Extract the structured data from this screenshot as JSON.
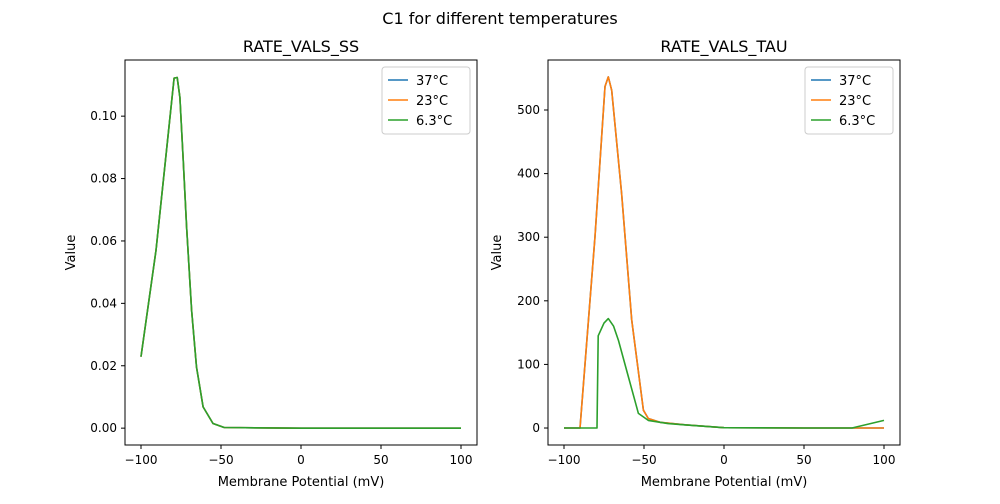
{
  "chart_data": {
    "title": "C1 for different temperatures",
    "subplots": [
      {
        "type": "line",
        "title": "RATE_VALS_SS",
        "xlabel": "Membrane Potential (mV)",
        "ylabel": "Value",
        "xlim": [
          -110,
          110
        ],
        "ylim": [
          -0.0054,
          0.118
        ],
        "xticks": [
          -100,
          -50,
          0,
          50,
          100
        ],
        "xtick_labels": [
          "−100",
          "−50",
          "0",
          "50",
          "100"
        ],
        "yticks": [
          0,
          0.02,
          0.04,
          0.06,
          0.08,
          0.1
        ],
        "ytick_labels": [
          "0.00",
          "0.02",
          "0.04",
          "0.06",
          "0.08",
          "0.10"
        ],
        "legend": "top-right",
        "series": [
          {
            "name": "37°C",
            "color": "#1f77b4",
            "x": [
              -100,
              -90.6,
              -79.3,
              -77.4,
              -75.7,
              -73.6,
              -71.5,
              -68.4,
              -65.3,
              -61.2,
              -55,
              -48,
              0,
              50,
              100
            ],
            "y": [
              0.0229,
              0.057,
              0.1122,
              0.1124,
              0.106,
              0.086,
              0.0645,
              0.0378,
              0.0196,
              0.0068,
              0.0015,
              0.0002,
              0,
              0,
              0
            ]
          },
          {
            "name": "23°C",
            "color": "#ff7f0e",
            "x": [
              -100,
              -90.6,
              -79.3,
              -77.4,
              -75.7,
              -73.6,
              -71.5,
              -68.4,
              -65.3,
              -61.2,
              -55,
              -48,
              0,
              50,
              100
            ],
            "y": [
              0.0229,
              0.057,
              0.1122,
              0.1124,
              0.106,
              0.086,
              0.0645,
              0.0378,
              0.0196,
              0.0068,
              0.0015,
              0.0002,
              0,
              0,
              0
            ]
          },
          {
            "name": "6.3°C",
            "color": "#2ca02c",
            "x": [
              -100,
              -90.6,
              -79.3,
              -77.4,
              -75.7,
              -73.6,
              -71.5,
              -68.4,
              -65.3,
              -61.2,
              -55,
              -48,
              0,
              50,
              100
            ],
            "y": [
              0.0229,
              0.057,
              0.1122,
              0.1124,
              0.106,
              0.086,
              0.0645,
              0.0378,
              0.0196,
              0.0068,
              0.0015,
              0.0002,
              0,
              0,
              0
            ]
          }
        ]
      },
      {
        "type": "line",
        "title": "RATE_VALS_TAU",
        "xlabel": "Membrane Potential (mV)",
        "ylabel": "Value",
        "xlim": [
          -110,
          110
        ],
        "ylim": [
          -26.7,
          578.6
        ],
        "xticks": [
          -100,
          -50,
          0,
          50,
          100
        ],
        "xtick_labels": [
          "−100",
          "−50",
          "0",
          "50",
          "100"
        ],
        "yticks": [
          0,
          100,
          200,
          300,
          400,
          500
        ],
        "ytick_labels": [
          "0",
          "100",
          "200",
          "300",
          "400",
          "500"
        ],
        "legend": "top-right",
        "series": [
          {
            "name": "37°C",
            "color": "#1f77b4",
            "x": [
              -100,
              -90,
              -80.6,
              -74.4,
              -72.3,
              -70.2,
              -64,
              -57.7,
              -50.4,
              -47.3,
              -40,
              -24.4,
              0,
              50,
              100
            ],
            "y": [
              0,
              0,
              301,
              537,
              552,
              531,
              369,
              170,
              28,
              15,
              9,
              5,
              0.5,
              0,
              0
            ]
          },
          {
            "name": "23°C",
            "color": "#ff7f0e",
            "x": [
              -100,
              -90,
              -80.6,
              -74.4,
              -72.3,
              -70.2,
              -64,
              -57.7,
              -50.4,
              -47.3,
              -40,
              -24.4,
              0,
              50,
              100
            ],
            "y": [
              0,
              0,
              301,
              537,
              552,
              531,
              369,
              170,
              28,
              15,
              9,
              5,
              0.5,
              0,
              0
            ]
          },
          {
            "name": "6.3°C",
            "color": "#2ca02c",
            "x": [
              -100,
              -79.4,
              -78.6,
              -75,
              -72.3,
              -69,
              -66,
              -59.8,
              -53.5,
              -47.3,
              -35,
              -25,
              0,
              50,
              80,
              100
            ],
            "y": [
              0,
              0,
              145,
              165,
              172,
              160,
              138,
              81,
              23,
              12,
              7,
              5,
              0.5,
              0,
              0,
              12
            ]
          }
        ]
      }
    ]
  }
}
